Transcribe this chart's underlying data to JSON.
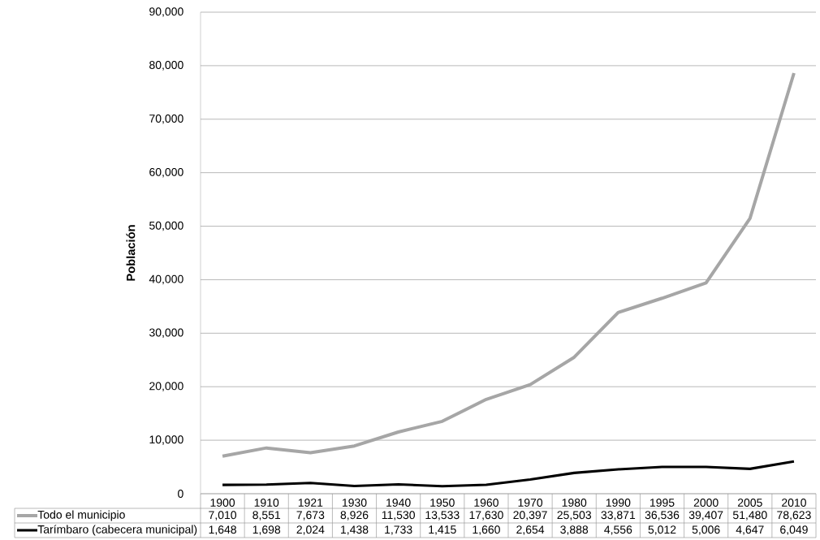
{
  "chart_data": {
    "type": "line",
    "ylabel": "Población",
    "categories": [
      "1900",
      "1910",
      "1921",
      "1930",
      "1940",
      "1950",
      "1960",
      "1970",
      "1980",
      "1990",
      "1995",
      "2000",
      "2005",
      "2010"
    ],
    "series": [
      {
        "name": "Todo el municipio",
        "color": "#a6a6a6",
        "values": [
          7010,
          8551,
          7673,
          8926,
          11530,
          13533,
          17630,
          20397,
          25503,
          33871,
          36536,
          39407,
          51480,
          78623
        ],
        "value_labels": [
          "7,010",
          "8,551",
          "7,673",
          "8,926",
          "11,530",
          "13,533",
          "17,630",
          "20,397",
          "25,503",
          "33,871",
          "36,536",
          "39,407",
          "51,480",
          "78,623"
        ]
      },
      {
        "name": "Tarímbaro (cabecera municipal)",
        "color": "#000000",
        "values": [
          1648,
          1698,
          2024,
          1438,
          1733,
          1415,
          1660,
          2654,
          3888,
          4556,
          5012,
          5006,
          4647,
          6049
        ],
        "value_labels": [
          "1,648",
          "1,698",
          "2,024",
          "1,438",
          "1,733",
          "1,415",
          "1,660",
          "2,654",
          "3,888",
          "4,556",
          "5,012",
          "5,006",
          "4,647",
          "6,049"
        ]
      }
    ],
    "ylim": [
      0,
      90000
    ],
    "yticks": [
      0,
      {
        "value": 10000,
        "label": "10,000"
      },
      {
        "value": 20000,
        "label": "20,000"
      },
      {
        "value": 30000,
        "label": "30,000"
      },
      {
        "value": 40000,
        "label": "40,000"
      },
      {
        "value": 50000,
        "label": "50,000"
      },
      {
        "value": 60000,
        "label": "60,000"
      },
      {
        "value": 70000,
        "label": "70,000"
      },
      {
        "value": 80000,
        "label": "80,000"
      },
      {
        "value": 90000,
        "label": "90,000"
      }
    ],
    "grid": "y",
    "legend": "bottom",
    "marker": "none",
    "line_style": "solid"
  }
}
